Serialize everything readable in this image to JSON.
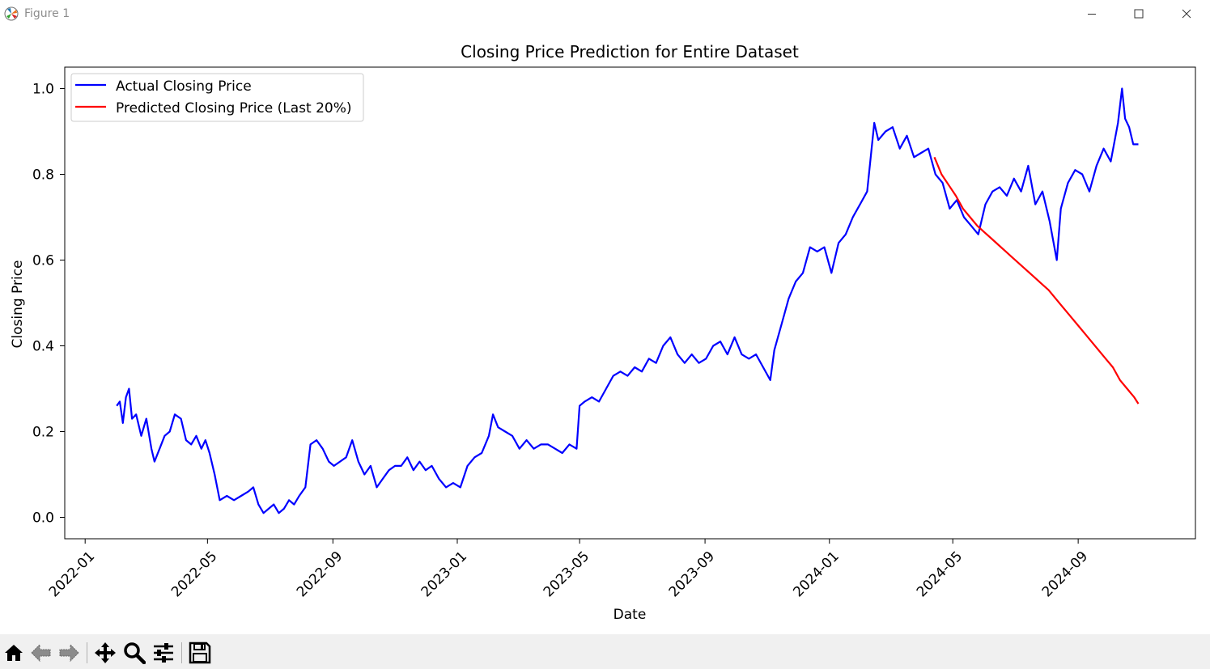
{
  "window": {
    "title": "Figure 1"
  },
  "toolbar": {
    "tools": [
      "home-icon",
      "back-arrow-icon",
      "forward-arrow-icon",
      "pan-icon",
      "zoom-icon",
      "configure-subplots-icon",
      "save-icon"
    ]
  },
  "colors": {
    "actual": "#0000ff",
    "predicted": "#ff0000"
  },
  "chart_data": {
    "type": "line",
    "title": "Closing Price Prediction for Entire Dataset",
    "xlabel": "Date",
    "ylabel": "Closing Price",
    "xlim": [
      "2021-12-12",
      "2024-12-25"
    ],
    "ylim": [
      -0.05,
      1.05
    ],
    "x_ticks": [
      "2022-01",
      "2022-05",
      "2022-09",
      "2023-01",
      "2023-05",
      "2023-09",
      "2024-01",
      "2024-05",
      "2024-09"
    ],
    "y_ticks": [
      "0.0",
      "0.2",
      "0.4",
      "0.6",
      "0.8",
      "1.0"
    ],
    "legend_position": "upper-left",
    "grid": false,
    "series": [
      {
        "name": "Actual Closing Price",
        "x": [
          "2022-02-01",
          "2022-02-04",
          "2022-02-07",
          "2022-02-10",
          "2022-02-13",
          "2022-02-16",
          "2022-02-20",
          "2022-02-25",
          "2022-03-02",
          "2022-03-07",
          "2022-03-10",
          "2022-03-15",
          "2022-03-20",
          "2022-03-25",
          "2022-03-30",
          "2022-04-05",
          "2022-04-10",
          "2022-04-15",
          "2022-04-20",
          "2022-04-25",
          "2022-04-29",
          "2022-05-03",
          "2022-05-08",
          "2022-05-13",
          "2022-05-20",
          "2022-05-27",
          "2022-06-03",
          "2022-06-10",
          "2022-06-15",
          "2022-06-20",
          "2022-06-25",
          "2022-06-30",
          "2022-07-05",
          "2022-07-10",
          "2022-07-15",
          "2022-07-20",
          "2022-07-25",
          "2022-07-30",
          "2022-08-05",
          "2022-08-10",
          "2022-08-16",
          "2022-08-22",
          "2022-08-28",
          "2022-09-02",
          "2022-09-08",
          "2022-09-14",
          "2022-09-20",
          "2022-09-26",
          "2022-10-02",
          "2022-10-08",
          "2022-10-14",
          "2022-10-20",
          "2022-10-26",
          "2022-11-01",
          "2022-11-07",
          "2022-11-13",
          "2022-11-19",
          "2022-11-25",
          "2022-12-01",
          "2022-12-07",
          "2022-12-14",
          "2022-12-21",
          "2022-12-28",
          "2023-01-04",
          "2023-01-11",
          "2023-01-18",
          "2023-01-25",
          "2023-02-01",
          "2023-02-05",
          "2023-02-10",
          "2023-02-17",
          "2023-02-24",
          "2023-03-03",
          "2023-03-10",
          "2023-03-17",
          "2023-03-24",
          "2023-03-31",
          "2023-04-07",
          "2023-04-14",
          "2023-04-21",
          "2023-04-28",
          "2023-05-01",
          "2023-05-06",
          "2023-05-13",
          "2023-05-20",
          "2023-05-27",
          "2023-06-03",
          "2023-06-10",
          "2023-06-17",
          "2023-06-24",
          "2023-07-01",
          "2023-07-08",
          "2023-07-15",
          "2023-07-22",
          "2023-07-29",
          "2023-08-05",
          "2023-08-12",
          "2023-08-19",
          "2023-08-26",
          "2023-09-02",
          "2023-09-09",
          "2023-09-16",
          "2023-09-23",
          "2023-09-30",
          "2023-10-07",
          "2023-10-14",
          "2023-10-21",
          "2023-10-28",
          "2023-11-04",
          "2023-11-08",
          "2023-11-15",
          "2023-11-22",
          "2023-11-29",
          "2023-12-06",
          "2023-12-13",
          "2023-12-20",
          "2023-12-27",
          "2024-01-03",
          "2024-01-10",
          "2024-01-17",
          "2024-01-24",
          "2024-01-31",
          "2024-02-07",
          "2024-02-14",
          "2024-02-18",
          "2024-02-25",
          "2024-03-03",
          "2024-03-10",
          "2024-03-17",
          "2024-03-24",
          "2024-03-31",
          "2024-04-07",
          "2024-04-14",
          "2024-04-21",
          "2024-04-28",
          "2024-05-05",
          "2024-05-12",
          "2024-05-19",
          "2024-05-26",
          "2024-06-02",
          "2024-06-09",
          "2024-06-16",
          "2024-06-23",
          "2024-06-30",
          "2024-07-07",
          "2024-07-14",
          "2024-07-21",
          "2024-07-28",
          "2024-08-04",
          "2024-08-11",
          "2024-08-15",
          "2024-08-22",
          "2024-08-29",
          "2024-09-05",
          "2024-09-12",
          "2024-09-19",
          "2024-09-26",
          "2024-10-03",
          "2024-10-10",
          "2024-10-14",
          "2024-10-17",
          "2024-10-21",
          "2024-10-25",
          "2024-10-30"
        ],
        "y": [
          0.26,
          0.27,
          0.22,
          0.28,
          0.3,
          0.23,
          0.24,
          0.19,
          0.23,
          0.16,
          0.13,
          0.16,
          0.19,
          0.2,
          0.24,
          0.23,
          0.18,
          0.17,
          0.19,
          0.16,
          0.18,
          0.15,
          0.1,
          0.04,
          0.05,
          0.04,
          0.05,
          0.06,
          0.07,
          0.03,
          0.01,
          0.02,
          0.03,
          0.01,
          0.02,
          0.04,
          0.03,
          0.05,
          0.07,
          0.17,
          0.18,
          0.16,
          0.13,
          0.12,
          0.13,
          0.14,
          0.18,
          0.13,
          0.1,
          0.12,
          0.07,
          0.09,
          0.11,
          0.12,
          0.12,
          0.14,
          0.11,
          0.13,
          0.11,
          0.12,
          0.09,
          0.07,
          0.08,
          0.07,
          0.12,
          0.14,
          0.15,
          0.19,
          0.24,
          0.21,
          0.2,
          0.19,
          0.16,
          0.18,
          0.16,
          0.17,
          0.17,
          0.16,
          0.15,
          0.17,
          0.16,
          0.26,
          0.27,
          0.28,
          0.27,
          0.3,
          0.33,
          0.34,
          0.33,
          0.35,
          0.34,
          0.37,
          0.36,
          0.4,
          0.42,
          0.38,
          0.36,
          0.38,
          0.36,
          0.37,
          0.4,
          0.41,
          0.38,
          0.42,
          0.38,
          0.37,
          0.38,
          0.35,
          0.32,
          0.39,
          0.45,
          0.51,
          0.55,
          0.57,
          0.63,
          0.62,
          0.63,
          0.57,
          0.64,
          0.66,
          0.7,
          0.73,
          0.76,
          0.92,
          0.88,
          0.9,
          0.91,
          0.86,
          0.89,
          0.84,
          0.85,
          0.86,
          0.8,
          0.78,
          0.72,
          0.74,
          0.7,
          0.68,
          0.66,
          0.73,
          0.76,
          0.77,
          0.75,
          0.79,
          0.76,
          0.82,
          0.73,
          0.76,
          0.69,
          0.6,
          0.72,
          0.78,
          0.81,
          0.8,
          0.76,
          0.82,
          0.86,
          0.83,
          0.92,
          1.0,
          0.93,
          0.91,
          0.87,
          0.87
        ]
      },
      {
        "name": "Predicted Closing Price (Last 20%)",
        "x": [
          "2024-04-13",
          "2024-04-20",
          "2024-04-27",
          "2024-05-04",
          "2024-05-11",
          "2024-05-18",
          "2024-05-25",
          "2024-06-01",
          "2024-06-08",
          "2024-06-15",
          "2024-06-22",
          "2024-06-29",
          "2024-07-06",
          "2024-07-13",
          "2024-07-20",
          "2024-07-27",
          "2024-08-03",
          "2024-08-10",
          "2024-08-17",
          "2024-08-24",
          "2024-08-31",
          "2024-09-07",
          "2024-09-14",
          "2024-09-21",
          "2024-09-28",
          "2024-10-05",
          "2024-10-12",
          "2024-10-19",
          "2024-10-26",
          "2024-10-30"
        ],
        "y": [
          0.84,
          0.8,
          0.775,
          0.75,
          0.72,
          0.7,
          0.68,
          0.665,
          0.65,
          0.635,
          0.62,
          0.605,
          0.59,
          0.575,
          0.56,
          0.545,
          0.53,
          0.51,
          0.49,
          0.47,
          0.45,
          0.43,
          0.41,
          0.39,
          0.37,
          0.35,
          0.32,
          0.3,
          0.28,
          0.265
        ]
      }
    ]
  }
}
